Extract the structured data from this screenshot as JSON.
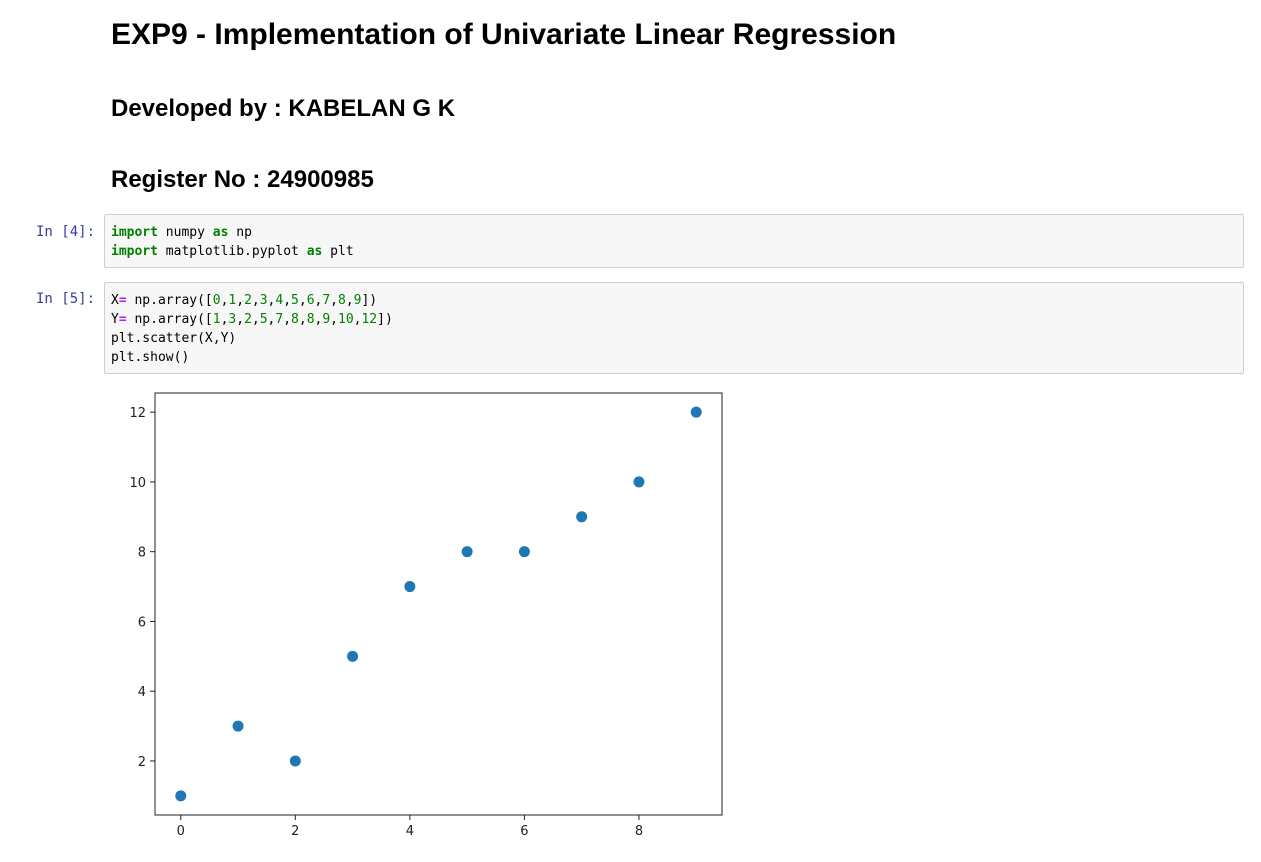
{
  "markdown": {
    "title": "EXP9 - Implementation of Univariate Linear Regression",
    "developer": "Developed by : KABELAN G K",
    "register": "Register No : 24900985"
  },
  "cells": [
    {
      "prompt": "In [4]:",
      "lines": [
        [
          {
            "t": "import",
            "c": "kw"
          },
          {
            "t": " numpy ",
            "c": ""
          },
          {
            "t": "as",
            "c": "kw"
          },
          {
            "t": " np",
            "c": ""
          }
        ],
        [
          {
            "t": "import",
            "c": "kw"
          },
          {
            "t": " matplotlib.pyplot ",
            "c": ""
          },
          {
            "t": "as",
            "c": "kw"
          },
          {
            "t": " plt",
            "c": ""
          }
        ]
      ]
    },
    {
      "prompt": "In [5]:",
      "lines": [
        [
          {
            "t": "X",
            "c": ""
          },
          {
            "t": "=",
            "c": "op"
          },
          {
            "t": " np.array([",
            "c": ""
          },
          {
            "t": "0",
            "c": "num"
          },
          {
            "t": ",",
            "c": ""
          },
          {
            "t": "1",
            "c": "num"
          },
          {
            "t": ",",
            "c": ""
          },
          {
            "t": "2",
            "c": "num"
          },
          {
            "t": ",",
            "c": ""
          },
          {
            "t": "3",
            "c": "num"
          },
          {
            "t": ",",
            "c": ""
          },
          {
            "t": "4",
            "c": "num"
          },
          {
            "t": ",",
            "c": ""
          },
          {
            "t": "5",
            "c": "num"
          },
          {
            "t": ",",
            "c": ""
          },
          {
            "t": "6",
            "c": "num"
          },
          {
            "t": ",",
            "c": ""
          },
          {
            "t": "7",
            "c": "num"
          },
          {
            "t": ",",
            "c": ""
          },
          {
            "t": "8",
            "c": "num"
          },
          {
            "t": ",",
            "c": ""
          },
          {
            "t": "9",
            "c": "num"
          },
          {
            "t": "])",
            "c": ""
          }
        ],
        [
          {
            "t": "Y",
            "c": ""
          },
          {
            "t": "=",
            "c": "op"
          },
          {
            "t": " np.array([",
            "c": ""
          },
          {
            "t": "1",
            "c": "num"
          },
          {
            "t": ",",
            "c": ""
          },
          {
            "t": "3",
            "c": "num"
          },
          {
            "t": ",",
            "c": ""
          },
          {
            "t": "2",
            "c": "num"
          },
          {
            "t": ",",
            "c": ""
          },
          {
            "t": "5",
            "c": "num"
          },
          {
            "t": ",",
            "c": ""
          },
          {
            "t": "7",
            "c": "num"
          },
          {
            "t": ",",
            "c": ""
          },
          {
            "t": "8",
            "c": "num"
          },
          {
            "t": ",",
            "c": ""
          },
          {
            "t": "8",
            "c": "num"
          },
          {
            "t": ",",
            "c": ""
          },
          {
            "t": "9",
            "c": "num"
          },
          {
            "t": ",",
            "c": ""
          },
          {
            "t": "10",
            "c": "num"
          },
          {
            "t": ",",
            "c": ""
          },
          {
            "t": "12",
            "c": "num"
          },
          {
            "t": "])",
            "c": ""
          }
        ],
        [
          {
            "t": "plt.scatter(X,Y)",
            "c": ""
          }
        ],
        [
          {
            "t": "plt.show()",
            "c": ""
          }
        ]
      ]
    }
  ],
  "chart_data": {
    "type": "scatter",
    "x": [
      0,
      1,
      2,
      3,
      4,
      5,
      6,
      7,
      8,
      9
    ],
    "y": [
      1,
      3,
      2,
      5,
      7,
      8,
      8,
      9,
      10,
      12
    ],
    "xticks": [
      0,
      2,
      4,
      6,
      8
    ],
    "yticks": [
      2,
      4,
      6,
      8,
      10,
      12
    ],
    "xlim": [
      -0.45,
      9.45
    ],
    "ylim": [
      0.45,
      12.55
    ],
    "color": "#1f77b4",
    "grid": false,
    "title": "",
    "xlabel": "",
    "ylabel": ""
  }
}
